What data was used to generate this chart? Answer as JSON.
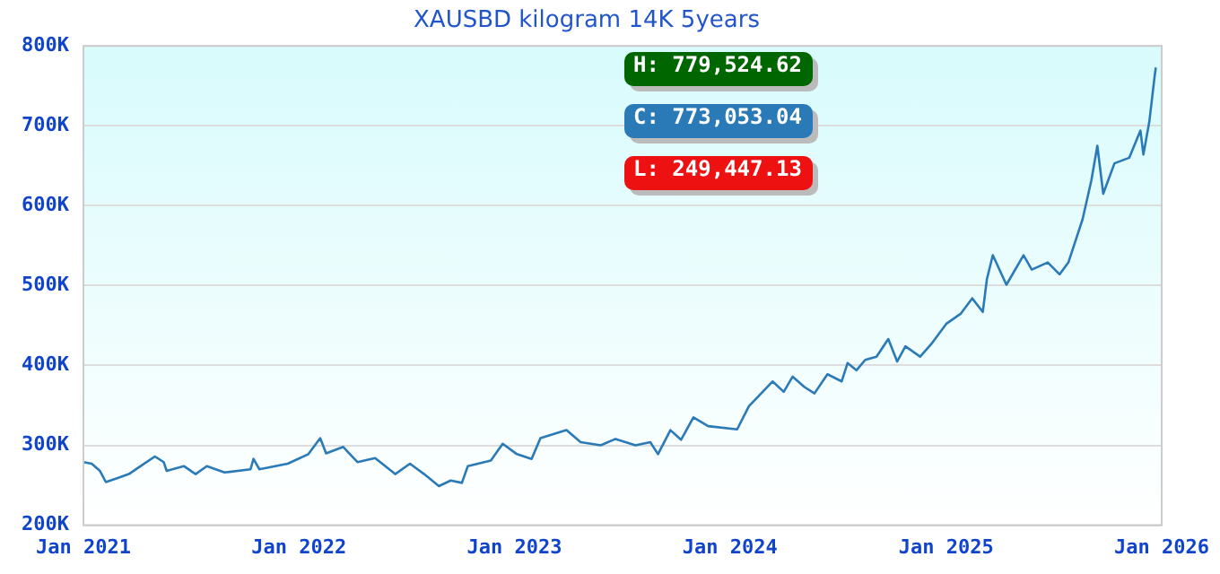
{
  "chart_data": {
    "type": "line",
    "title": "XAUSBD kilogram 14K 5years",
    "x": [
      "2021-01-01",
      "2021-01-15",
      "2021-01-29",
      "2021-02-08",
      "2021-02-28",
      "2021-03-19",
      "2021-04-08",
      "2021-05-02",
      "2021-05-17",
      "2021-05-22",
      "2021-06-20",
      "2021-07-10",
      "2021-07-29",
      "2021-08-28",
      "2021-10-11",
      "2021-10-16",
      "2021-10-26",
      "2021-12-13",
      "2022-01-17",
      "2022-02-06",
      "2022-02-16",
      "2022-03-17",
      "2022-04-10",
      "2022-05-10",
      "2022-06-13",
      "2022-07-08",
      "2022-08-01",
      "2022-08-26",
      "2022-09-15",
      "2022-10-04",
      "2022-10-14",
      "2022-11-22",
      "2022-12-12",
      "2023-01-05",
      "2023-01-30",
      "2023-02-14",
      "2023-03-30",
      "2023-04-23",
      "2023-05-27",
      "2023-06-21",
      "2023-07-25",
      "2023-08-19",
      "2023-09-01",
      "2023-09-22",
      "2023-10-10",
      "2023-10-31",
      "2023-11-25",
      "2024-01-13",
      "2024-02-02",
      "2024-03-13",
      "2024-04-01",
      "2024-04-16",
      "2024-05-06",
      "2024-05-23",
      "2024-06-14",
      "2024-07-08",
      "2024-07-18",
      "2024-08-02",
      "2024-08-17",
      "2024-09-05",
      "2024-09-25",
      "2024-10-10",
      "2024-10-24",
      "2024-11-18",
      "2024-12-07",
      "2025-01-01",
      "2025-01-26",
      "2025-02-14",
      "2025-03-04",
      "2025-03-11",
      "2025-03-21",
      "2025-04-13",
      "2025-05-12",
      "2025-05-26",
      "2025-06-22",
      "2025-07-12",
      "2025-07-27",
      "2025-08-20",
      "2025-09-04",
      "2025-09-14",
      "2025-09-24",
      "2025-10-13",
      "2025-11-07",
      "2025-11-26",
      "2025-12-01",
      "2025-12-11",
      "2025-12-20",
      "2025-12-22"
    ],
    "series": [
      {
        "color": "#2a7ab8",
        "values": [
          279,
          277,
          268,
          254,
          259,
          264,
          274,
          286,
          279,
          268,
          274,
          264,
          274,
          266,
          270,
          283,
          270,
          277,
          289,
          309,
          290,
          298,
          279,
          284,
          264,
          277,
          264,
          249,
          256,
          253,
          274,
          281,
          302,
          289,
          283,
          309,
          319,
          304,
          300,
          308,
          300,
          304,
          289,
          319,
          307,
          335,
          324,
          320,
          349,
          380,
          367,
          386,
          373,
          365,
          389,
          380,
          403,
          394,
          407,
          411,
          433,
          405,
          424,
          411,
          427,
          452,
          465,
          484,
          467,
          508,
          538,
          501,
          538,
          520,
          529,
          514,
          529,
          583,
          632,
          675,
          615,
          653,
          660,
          694,
          664,
          705,
          762,
          773
        ]
      }
    ],
    "xlim": [
      "2021-01-01",
      "2026-01-01"
    ],
    "xticks": [
      {
        "value": "2021-01-01",
        "label": "Jan 2021"
      },
      {
        "value": "2022-01-01",
        "label": "Jan 2022"
      },
      {
        "value": "2023-01-01",
        "label": "Jan 2023"
      },
      {
        "value": "2024-01-01",
        "label": "Jan 2024"
      },
      {
        "value": "2025-01-01",
        "label": "Jan 2025"
      },
      {
        "value": "2026-01-01",
        "label": "Jan 2026"
      }
    ],
    "ylim": [
      200,
      800
    ],
    "yticks": [
      {
        "value": 200,
        "label": "200K"
      },
      {
        "value": 300,
        "label": "300K"
      },
      {
        "value": 400,
        "label": "400K"
      },
      {
        "value": 500,
        "label": "500K"
      },
      {
        "value": 600,
        "label": "600K"
      },
      {
        "value": 700,
        "label": "700K"
      },
      {
        "value": 800,
        "label": "800K"
      }
    ],
    "grid": "y",
    "legend": false,
    "marker": "none",
    "line_style": "solid",
    "annotations": [
      "H: 779,524.62",
      "C: 773,053.04",
      "L: 249,447.13"
    ]
  }
}
